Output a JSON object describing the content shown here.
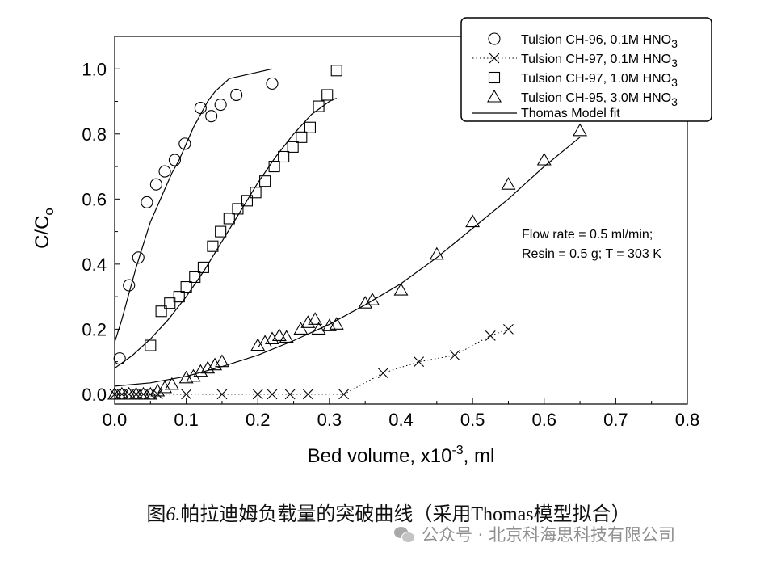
{
  "chart_data": {
    "type": "scatter",
    "xlabel": "Bed volume, x10",
    "xlabel_sup": "-3",
    "xlabel_tail": ", ml",
    "ylabel_main": "C/C",
    "ylabel_sub": "o",
    "xlim": [
      0,
      0.8
    ],
    "ylim": [
      -0.03,
      1.1
    ],
    "xticks": [
      "0.0",
      "0.1",
      "0.2",
      "0.3",
      "0.4",
      "0.5",
      "0.6",
      "0.7",
      "0.8"
    ],
    "yticks": [
      "0.0",
      "0.2",
      "0.4",
      "0.6",
      "0.8",
      "1.0"
    ],
    "legend_position": "top-right",
    "annotation_lines": [
      "Flow rate = 0.5 ml/min;",
      "Resin = 0.5 g; T = 303 K"
    ],
    "series": [
      {
        "name": "Tulsion CH-96, 0.1M HNO",
        "name_sub": "3",
        "marker": "circle",
        "x": [
          0.007,
          0.02,
          0.033,
          0.045,
          0.058,
          0.07,
          0.084,
          0.098,
          0.12,
          0.135,
          0.148,
          0.17,
          0.22
        ],
        "y": [
          0.11,
          0.335,
          0.42,
          0.59,
          0.645,
          0.685,
          0.72,
          0.77,
          0.88,
          0.855,
          0.89,
          0.92,
          0.955
        ]
      },
      {
        "name": "Tulsion CH-97, 0.1M HNO",
        "name_sub": "3",
        "marker": "x",
        "line": "dotted",
        "x": [
          0.0,
          0.01,
          0.02,
          0.03,
          0.04,
          0.05,
          0.06,
          0.1,
          0.15,
          0.2,
          0.22,
          0.245,
          0.27,
          0.32,
          0.375,
          0.425,
          0.475,
          0.525,
          0.55
        ],
        "y": [
          0,
          0,
          0,
          0,
          0,
          0,
          0,
          0,
          0,
          0,
          0,
          0,
          0,
          0,
          0.065,
          0.1,
          0.12,
          0.18,
          0.2
        ]
      },
      {
        "name": "Tulsion CH-97, 1.0M HNO",
        "name_sub": "3",
        "marker": "square",
        "x": [
          0.05,
          0.065,
          0.077,
          0.09,
          0.1,
          0.112,
          0.124,
          0.137,
          0.148,
          0.16,
          0.172,
          0.185,
          0.197,
          0.21,
          0.223,
          0.236,
          0.249,
          0.261,
          0.273,
          0.285,
          0.297,
          0.31
        ],
        "y": [
          0.15,
          0.255,
          0.28,
          0.3,
          0.33,
          0.36,
          0.39,
          0.455,
          0.5,
          0.54,
          0.57,
          0.595,
          0.62,
          0.655,
          0.7,
          0.73,
          0.76,
          0.79,
          0.82,
          0.885,
          0.92,
          0.995
        ]
      },
      {
        "name": "Tulsion CH-95, 3.0M HNO",
        "name_sub": "3",
        "marker": "triangle",
        "x": [
          0.0,
          0.01,
          0.02,
          0.03,
          0.04,
          0.05,
          0.06,
          0.07,
          0.08,
          0.1,
          0.11,
          0.12,
          0.13,
          0.14,
          0.15,
          0.2,
          0.21,
          0.22,
          0.23,
          0.24,
          0.26,
          0.27,
          0.28,
          0.285,
          0.3,
          0.31,
          0.35,
          0.36,
          0.4,
          0.45,
          0.5,
          0.55,
          0.6,
          0.65
        ],
        "y": [
          0,
          0,
          0,
          0,
          0,
          0,
          0.01,
          0.02,
          0.03,
          0.05,
          0.055,
          0.07,
          0.08,
          0.09,
          0.1,
          0.15,
          0.16,
          0.17,
          0.18,
          0.175,
          0.2,
          0.22,
          0.23,
          0.2,
          0.21,
          0.215,
          0.28,
          0.29,
          0.32,
          0.43,
          0.53,
          0.645,
          0.72,
          0.81
        ]
      }
    ],
    "fit": {
      "name": "Thomas Model fit",
      "curves": [
        {
          "x": [
            0.0,
            0.01,
            0.02,
            0.03,
            0.04,
            0.05,
            0.06,
            0.07,
            0.08,
            0.09,
            0.1,
            0.11,
            0.12,
            0.13,
            0.14,
            0.15,
            0.16,
            0.18,
            0.2,
            0.22
          ],
          "y": [
            0.16,
            0.23,
            0.31,
            0.39,
            0.46,
            0.53,
            0.58,
            0.63,
            0.68,
            0.72,
            0.77,
            0.82,
            0.86,
            0.9,
            0.93,
            0.95,
            0.97,
            0.98,
            0.99,
            1.0
          ]
        },
        {
          "x": [
            0.0,
            0.025,
            0.05,
            0.075,
            0.1,
            0.125,
            0.15,
            0.175,
            0.2,
            0.225,
            0.25,
            0.275,
            0.3,
            0.31
          ],
          "y": [
            0.08,
            0.12,
            0.17,
            0.23,
            0.3,
            0.38,
            0.47,
            0.56,
            0.65,
            0.73,
            0.8,
            0.86,
            0.9,
            0.91
          ]
        },
        {
          "x": [
            0.0,
            0.05,
            0.1,
            0.15,
            0.2,
            0.25,
            0.3,
            0.35,
            0.4,
            0.45,
            0.5,
            0.55,
            0.6,
            0.65
          ],
          "y": [
            0.025,
            0.035,
            0.055,
            0.085,
            0.12,
            0.165,
            0.215,
            0.275,
            0.34,
            0.42,
            0.51,
            0.6,
            0.7,
            0.79
          ]
        }
      ]
    }
  },
  "caption": {
    "prefix": "图",
    "number": "6.",
    "text": "帕拉迪姆负载量的突破曲线（采用Thomas模型拟合）"
  },
  "watermark": {
    "icon": "wechat-icon",
    "text": "公众号 · 北京科海思科技有限公司"
  }
}
